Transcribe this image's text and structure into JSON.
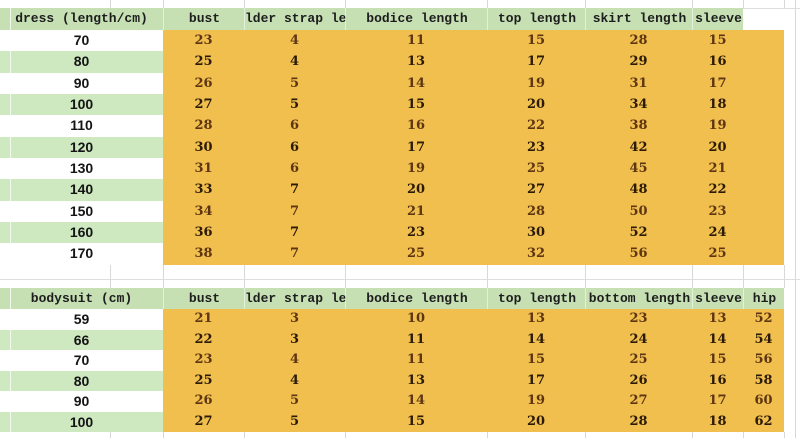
{
  "colors": {
    "header_green": "#c6e0b4",
    "stripe_green": "#cee8c0",
    "data_orange": "#f0bf4d",
    "value_brown": "#5e3512",
    "value_dark": "#2b1a07",
    "gridline": "#d7d7d7"
  },
  "tables": [
    {
      "id": "dress",
      "title": "dress (length/cm)",
      "columns": [
        "bust",
        "lder strap le",
        "bodice length",
        "top length",
        "skirt length",
        "sleeve"
      ],
      "rows": [
        {
          "size": "70",
          "values": [
            23,
            4,
            11,
            15,
            28,
            15
          ]
        },
        {
          "size": "80",
          "values": [
            25,
            4,
            13,
            17,
            29,
            16
          ]
        },
        {
          "size": "90",
          "values": [
            26,
            5,
            14,
            19,
            31,
            17
          ]
        },
        {
          "size": "100",
          "values": [
            27,
            5,
            15,
            20,
            34,
            18
          ]
        },
        {
          "size": "110",
          "values": [
            28,
            6,
            16,
            22,
            38,
            19
          ]
        },
        {
          "size": "120",
          "values": [
            30,
            6,
            17,
            23,
            42,
            20
          ]
        },
        {
          "size": "130",
          "values": [
            31,
            6,
            19,
            25,
            45,
            21
          ]
        },
        {
          "size": "140",
          "values": [
            33,
            7,
            20,
            27,
            48,
            22
          ]
        },
        {
          "size": "150",
          "values": [
            34,
            7,
            21,
            28,
            50,
            23
          ]
        },
        {
          "size": "160",
          "values": [
            36,
            7,
            23,
            30,
            52,
            24
          ]
        },
        {
          "size": "170",
          "values": [
            38,
            7,
            25,
            32,
            56,
            25
          ]
        }
      ]
    },
    {
      "id": "bodysuit",
      "title": "bodysuit (cm)",
      "columns": [
        "bust",
        "lder strap le",
        "bodice length",
        "top length",
        "bottom length",
        "sleeve",
        "hip"
      ],
      "rows": [
        {
          "size": "59",
          "values": [
            21,
            3,
            10,
            13,
            23,
            13,
            52
          ]
        },
        {
          "size": "66",
          "values": [
            22,
            3,
            11,
            14,
            24,
            14,
            54
          ]
        },
        {
          "size": "70",
          "values": [
            23,
            4,
            11,
            15,
            25,
            15,
            56
          ]
        },
        {
          "size": "80",
          "values": [
            25,
            4,
            13,
            17,
            26,
            16,
            58
          ]
        },
        {
          "size": "90",
          "values": [
            26,
            5,
            14,
            19,
            27,
            17,
            60
          ]
        },
        {
          "size": "100",
          "values": [
            27,
            5,
            15,
            20,
            28,
            18,
            62
          ]
        }
      ]
    }
  ]
}
